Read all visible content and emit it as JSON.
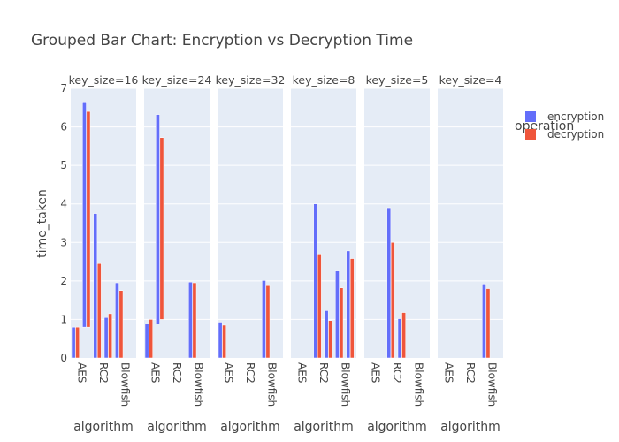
{
  "chart_data": {
    "type": "bar",
    "barmode": "group",
    "title": "Grouped Bar Chart: Encryption vs Decryption Time",
    "ylabel": "time_taken",
    "xlabel": "algorithm",
    "ylim": [
      0,
      7
    ],
    "yticks": [
      0,
      1,
      2,
      3,
      4,
      5,
      6,
      7
    ],
    "categories": [
      "AES",
      "RC2",
      "Blowfish"
    ],
    "legend": {
      "title": "operation",
      "placement": "top-right",
      "items": [
        {
          "name": "encryption",
          "color": "#636efa"
        },
        {
          "name": "decryption",
          "color": "#ef553b"
        }
      ]
    },
    "facets": [
      {
        "label": "key_size=16",
        "series": [
          {
            "name": "encryption",
            "color": "#636efa",
            "bars": [
              {
                "category": "AES",
                "segments": [
                  [
                    0,
                    0.8
                  ]
                ]
              },
              {
                "category": "AES",
                "segments": [
                  [
                    0.8,
                    6.65
                  ]
                ]
              },
              {
                "category": "RC2",
                "segments": [
                  [
                    0,
                    3.75
                  ]
                ]
              },
              {
                "category": "RC2",
                "segments": [
                  [
                    0,
                    1.05
                  ]
                ]
              },
              {
                "category": "Blowfish",
                "segments": [
                  [
                    0,
                    1.95
                  ]
                ]
              }
            ]
          },
          {
            "name": "decryption",
            "color": "#ef553b",
            "bars": [
              {
                "category": "AES",
                "segments": [
                  [
                    0,
                    0.8
                  ]
                ]
              },
              {
                "category": "AES",
                "segments": [
                  [
                    0.8,
                    6.4
                  ]
                ]
              },
              {
                "category": "RC2",
                "segments": [
                  [
                    0,
                    2.45
                  ]
                ]
              },
              {
                "category": "RC2",
                "segments": [
                  [
                    0,
                    1.15
                  ]
                ]
              },
              {
                "category": "Blowfish",
                "segments": [
                  [
                    0,
                    1.75
                  ]
                ]
              }
            ]
          }
        ]
      },
      {
        "label": "key_size=24",
        "series": [
          {
            "name": "encryption",
            "color": "#636efa",
            "bars": [
              {
                "category": "AES",
                "segments": [
                  [
                    0,
                    0.88
                  ]
                ]
              },
              {
                "category": "AES",
                "segments": [
                  [
                    0.88,
                    6.32
                  ]
                ]
              },
              {
                "category": "Blowfish",
                "segments": [
                  [
                    0,
                    1.97
                  ]
                ]
              }
            ]
          },
          {
            "name": "decryption",
            "color": "#ef553b",
            "bars": [
              {
                "category": "AES",
                "segments": [
                  [
                    0,
                    1.0
                  ]
                ]
              },
              {
                "category": "AES",
                "segments": [
                  [
                    1.0,
                    5.72
                  ]
                ]
              },
              {
                "category": "Blowfish",
                "segments": [
                  [
                    0,
                    1.95
                  ]
                ]
              }
            ]
          }
        ]
      },
      {
        "label": "key_size=32",
        "series": [
          {
            "name": "encryption",
            "color": "#636efa",
            "bars": [
              {
                "category": "AES",
                "segments": [
                  [
                    0,
                    0.93
                  ]
                ]
              },
              {
                "category": "Blowfish",
                "segments": [
                  [
                    0,
                    2.01
                  ]
                ]
              }
            ]
          },
          {
            "name": "decryption",
            "color": "#ef553b",
            "bars": [
              {
                "category": "AES",
                "segments": [
                  [
                    0,
                    0.85
                  ]
                ]
              },
              {
                "category": "Blowfish",
                "segments": [
                  [
                    0,
                    1.9
                  ]
                ]
              }
            ]
          }
        ]
      },
      {
        "label": "key_size=8",
        "series": [
          {
            "name": "encryption",
            "color": "#636efa",
            "bars": [
              {
                "category": "RC2",
                "segments": [
                  [
                    0,
                    4.0
                  ]
                ]
              },
              {
                "category": "RC2",
                "segments": [
                  [
                    0,
                    1.23
                  ]
                ]
              },
              {
                "category": "Blowfish",
                "segments": [
                  [
                    0,
                    2.28
                  ]
                ]
              },
              {
                "category": "Blowfish",
                "segments": [
                  [
                    0,
                    2.78
                  ]
                ]
              }
            ]
          },
          {
            "name": "decryption",
            "color": "#ef553b",
            "bars": [
              {
                "category": "RC2",
                "segments": [
                  [
                    0,
                    2.7
                  ]
                ]
              },
              {
                "category": "RC2",
                "segments": [
                  [
                    0,
                    0.97
                  ]
                ]
              },
              {
                "category": "Blowfish",
                "segments": [
                  [
                    0,
                    1.82
                  ]
                ]
              },
              {
                "category": "Blowfish",
                "segments": [
                  [
                    0,
                    2.58
                  ]
                ]
              }
            ]
          }
        ]
      },
      {
        "label": "key_size=5",
        "series": [
          {
            "name": "encryption",
            "color": "#636efa",
            "bars": [
              {
                "category": "RC2",
                "segments": [
                  [
                    0,
                    3.9
                  ]
                ]
              },
              {
                "category": "RC2",
                "segments": [
                  [
                    0,
                    1.02
                  ]
                ]
              }
            ]
          },
          {
            "name": "decryption",
            "color": "#ef553b",
            "bars": [
              {
                "category": "RC2",
                "segments": [
                  [
                    0,
                    3.0
                  ]
                ]
              },
              {
                "category": "RC2",
                "segments": [
                  [
                    0,
                    1.18
                  ]
                ]
              }
            ]
          }
        ]
      },
      {
        "label": "key_size=4",
        "series": [
          {
            "name": "encryption",
            "color": "#636efa",
            "bars": [
              {
                "category": "Blowfish",
                "segments": [
                  [
                    0,
                    1.92
                  ]
                ]
              }
            ]
          },
          {
            "name": "decryption",
            "color": "#ef553b",
            "bars": [
              {
                "category": "Blowfish",
                "segments": [
                  [
                    0,
                    1.8
                  ]
                ]
              }
            ]
          }
        ]
      }
    ]
  }
}
